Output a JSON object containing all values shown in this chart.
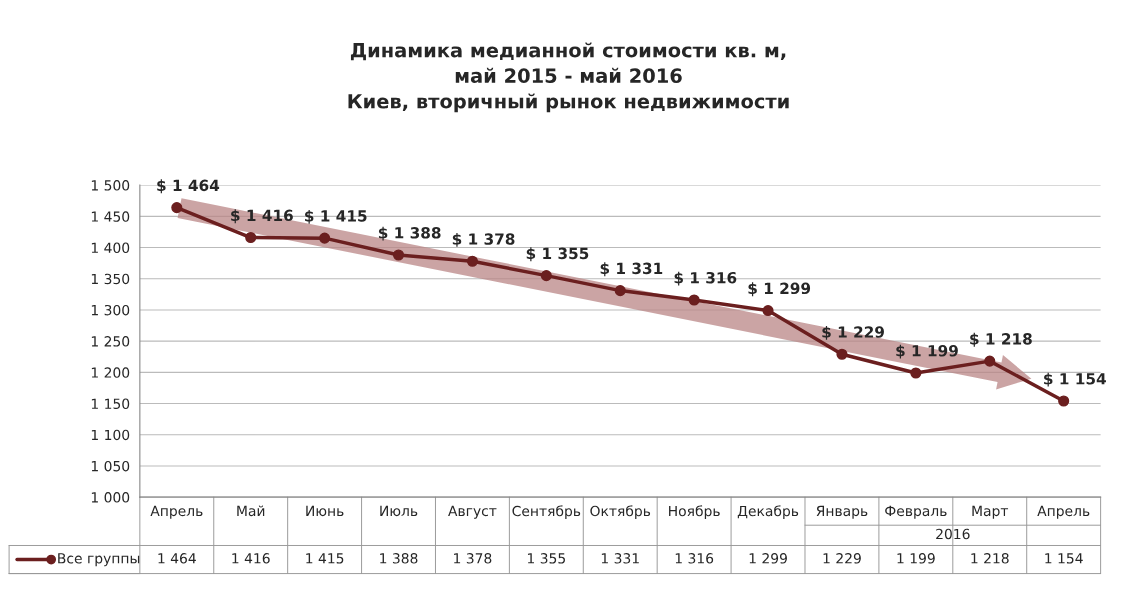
{
  "chart_data": {
    "type": "line",
    "title": "Динамика медианной стоимости кв. м,\nмай 2015 - май 2016\nКиев, вторичный рынок недвижимости",
    "categories": [
      "Апрель",
      "Май",
      "Июнь",
      "Июль",
      "Август",
      "Сентябрь",
      "Октябрь",
      "Ноябрь",
      "Декабрь",
      "Январь",
      "Февраль",
      "Март",
      "Апрель"
    ],
    "series": [
      {
        "name": "Все группы",
        "color": "#6b1f1f",
        "values": [
          1464,
          1416,
          1415,
          1388,
          1378,
          1355,
          1331,
          1316,
          1299,
          1229,
          1199,
          1218,
          1154
        ],
        "value_labels": [
          "$ 1 464",
          "$ 1 416",
          "$ 1 415",
          "$ 1 388",
          "$ 1 378",
          "$ 1 355",
          "$ 1 331",
          "$ 1 316",
          "$ 1 299",
          "$ 1 229",
          "$ 1 199",
          "$ 1 218",
          "$ 1 154"
        ]
      }
    ],
    "ylim": [
      1000,
      1500
    ],
    "yticks": [
      {
        "value": 1000,
        "label": "1 000"
      },
      {
        "value": 1050,
        "label": "1 050"
      },
      {
        "value": 1100,
        "label": "1 100"
      },
      {
        "value": 1150,
        "label": "1 150"
      },
      {
        "value": 1200,
        "label": "1 200"
      },
      {
        "value": 1250,
        "label": "1 250"
      },
      {
        "value": 1300,
        "label": "1 300"
      },
      {
        "value": 1350,
        "label": "1 350"
      },
      {
        "value": 1400,
        "label": "1 400"
      },
      {
        "value": 1450,
        "label": "1 450"
      },
      {
        "value": 1500,
        "label": "1 500"
      }
    ],
    "annotations": [
      "1 464",
      "1 416",
      "1 415",
      "1 388",
      "1 378",
      "1 355",
      "1 331",
      "1 316",
      "1 299",
      "1 229",
      "1 199",
      "1 218",
      "1 154",
      "2016"
    ],
    "grid": "y",
    "marker": "circle",
    "line_style": "solid",
    "legend": "bottom left"
  }
}
